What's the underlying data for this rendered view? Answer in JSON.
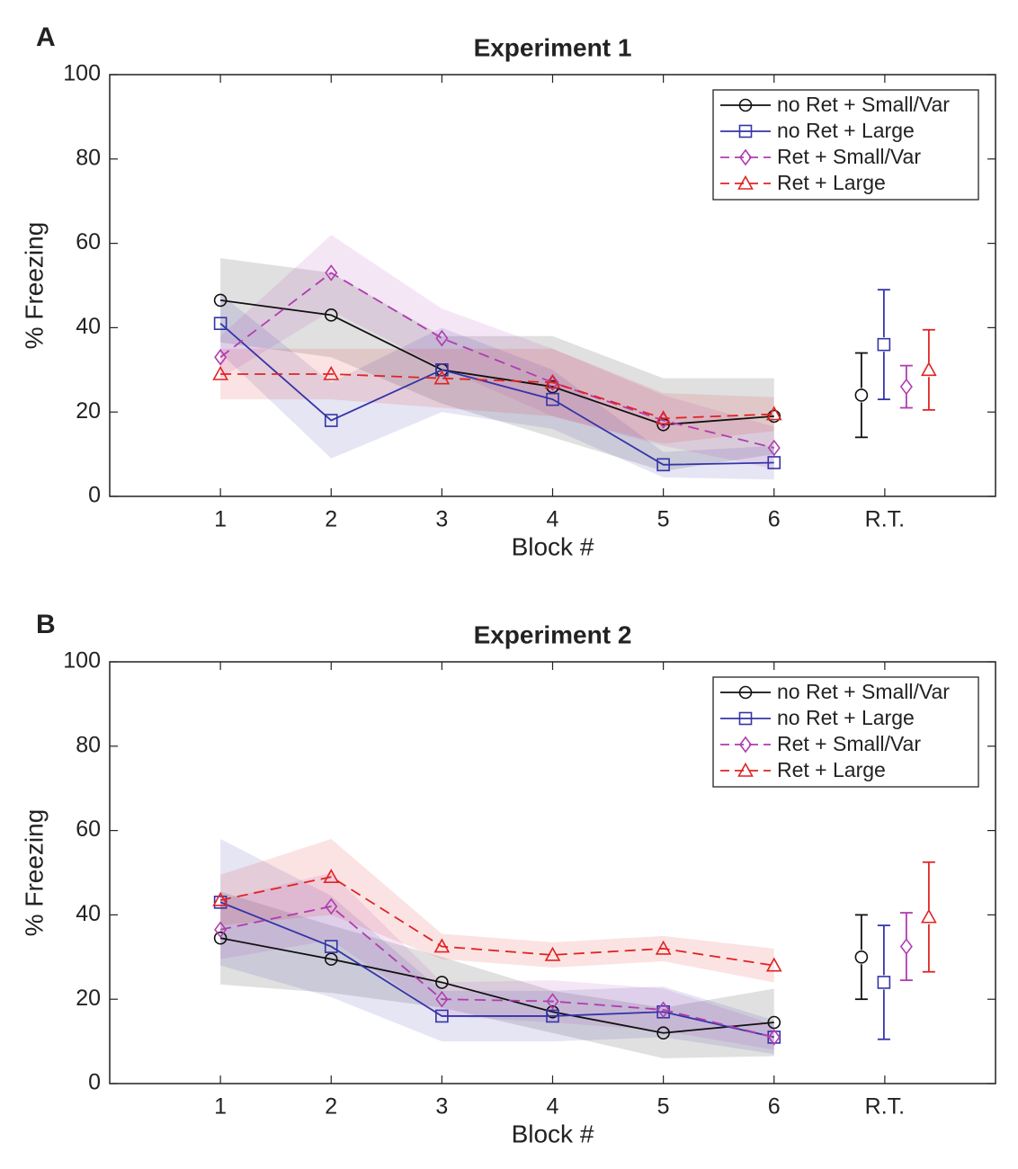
{
  "chart_data": [
    {
      "type": "line",
      "panel_label": "A",
      "title": "Experiment 1",
      "xlabel": "Block #",
      "ylabel": "% Freezing",
      "categories": [
        "1",
        "2",
        "3",
        "4",
        "5",
        "6"
      ],
      "rt_label": "R.T.",
      "ylim": [
        0,
        100
      ],
      "yticks": [
        0,
        20,
        40,
        60,
        80,
        100
      ],
      "legend": "northeast",
      "series": [
        {
          "name": "no Ret + Small/Var",
          "color": "#111111",
          "marker": "circle",
          "dashed": false,
          "values": [
            46.5,
            43,
            30,
            26,
            17,
            19
          ],
          "errors": [
            10,
            10,
            8,
            12,
            11,
            9
          ],
          "rt_value": 24,
          "rt_error": 10
        },
        {
          "name": "no Ret + Large",
          "color": "#3434a8",
          "marker": "square",
          "dashed": false,
          "values": [
            41,
            18,
            30,
            23,
            7.5,
            8
          ],
          "errors": [
            7,
            9,
            10,
            7,
            3,
            4
          ],
          "rt_value": 36,
          "rt_error": 13
        },
        {
          "name": "Ret + Small/Var",
          "color": "#b03cb0",
          "marker": "diamond",
          "dashed": true,
          "values": [
            33,
            53,
            37.5,
            27,
            18,
            11.5
          ],
          "errors": [
            5,
            9,
            7,
            8,
            6,
            5
          ],
          "rt_value": 26,
          "rt_error": 5
        },
        {
          "name": "Ret + Large",
          "color": "#e02424",
          "marker": "triangle",
          "dashed": true,
          "values": [
            29,
            29,
            28,
            27,
            18.5,
            19.5
          ],
          "errors": [
            6,
            6,
            7,
            8,
            6,
            4
          ],
          "rt_value": 30,
          "rt_error": 9.5
        }
      ]
    },
    {
      "type": "line",
      "panel_label": "B",
      "title": "Experiment 2",
      "xlabel": "Block #",
      "ylabel": "% Freezing",
      "categories": [
        "1",
        "2",
        "3",
        "4",
        "5",
        "6"
      ],
      "rt_label": "R.T.",
      "ylim": [
        0,
        100
      ],
      "yticks": [
        0,
        20,
        40,
        60,
        80,
        100
      ],
      "legend": "northeast",
      "series": [
        {
          "name": "no Ret + Small/Var",
          "color": "#111111",
          "marker": "circle",
          "dashed": false,
          "values": [
            34.5,
            29.5,
            24,
            17,
            12,
            14.5
          ],
          "errors": [
            11,
            8,
            6,
            5,
            6,
            8
          ],
          "rt_value": 30,
          "rt_error": 10
        },
        {
          "name": "no Ret + Large",
          "color": "#3434a8",
          "marker": "square",
          "dashed": false,
          "values": [
            43,
            32.5,
            16,
            16,
            17,
            11
          ],
          "errors": [
            15,
            12,
            6,
            6,
            6,
            4
          ],
          "rt_value": 24,
          "rt_error": 13.5
        },
        {
          "name": "Ret + Small/Var",
          "color": "#b03cb0",
          "marker": "diamond",
          "dashed": true,
          "values": [
            36.5,
            42,
            20,
            19.5,
            17.5,
            11
          ],
          "errors": [
            7,
            8,
            4,
            5,
            5,
            3
          ],
          "rt_value": 32.5,
          "rt_error": 8
        },
        {
          "name": "Ret + Large",
          "color": "#e02424",
          "marker": "triangle",
          "dashed": true,
          "values": [
            43.5,
            49,
            32.5,
            30.5,
            32,
            28
          ],
          "errors": [
            6,
            9,
            3,
            3,
            3,
            4
          ],
          "rt_value": 39.5,
          "rt_error": 13
        }
      ]
    }
  ]
}
